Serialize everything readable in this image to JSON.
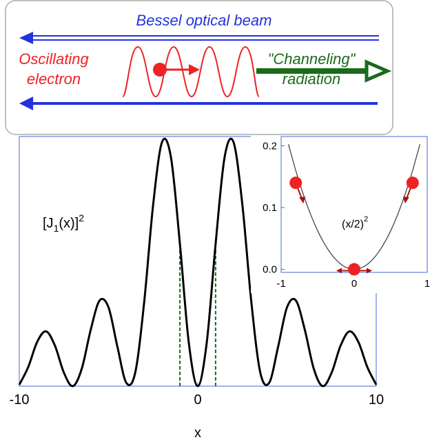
{
  "chart_data": [
    {
      "type": "line",
      "annotation": {
        "base": "[J",
        "sub": "1",
        "mid": "(x)]",
        "sup": "2"
      },
      "x_label": "x",
      "x": [
        -10,
        -9.5,
        -9,
        -8.5,
        -8,
        -7.5,
        -7,
        -6.5,
        -6,
        -5.5,
        -5,
        -4.5,
        -4,
        -3.5,
        -3,
        -2.5,
        -2,
        -1.5,
        -1,
        -0.5,
        0,
        0.5,
        1,
        1.5,
        2,
        2.5,
        3,
        3.5,
        4,
        4.5,
        5,
        5.5,
        6,
        6.5,
        7,
        7.5,
        8,
        8.5,
        9,
        9.5,
        10
      ],
      "series": [
        {
          "color": "#000000",
          "values": [
            0.0019,
            0.026,
            0.0602,
            0.0746,
            0.055,
            0.0183,
            0.0,
            0.0237,
            0.0766,
            0.1166,
            0.1073,
            0.0534,
            0.0044,
            0.0189,
            0.115,
            0.2471,
            0.3326,
            0.3113,
            0.1937,
            0.0587,
            0,
            0.0587,
            0.1937,
            0.3113,
            0.3326,
            0.2471,
            0.115,
            0.0189,
            0.0044,
            0.0534,
            0.1073,
            0.1166,
            0.0766,
            0.0237,
            0.0,
            0.0183,
            0.055,
            0.0746,
            0.0602,
            0.026,
            0.0019
          ]
        }
      ],
      "guides": {
        "color": "#1a6b1a",
        "x": [
          -1,
          1
        ],
        "y": [
          0.1937,
          0.1937
        ]
      },
      "axis_color": "#4466dd",
      "xlim": [
        -10,
        10
      ],
      "xticks": [
        -10,
        0,
        10
      ],
      "ylim": [
        0,
        0.34
      ]
    },
    {
      "type": "line",
      "annotation": {
        "base": "(x/2)",
        "sup": "2"
      },
      "x": [
        -0.9,
        -0.8,
        -0.7,
        -0.6,
        -0.5,
        -0.4,
        -0.3,
        -0.2,
        -0.1,
        0,
        0.1,
        0.2,
        0.3,
        0.4,
        0.5,
        0.6,
        0.7,
        0.8,
        0.9
      ],
      "series": [
        {
          "color": "#444444",
          "values": [
            0.2025,
            0.16,
            0.1225,
            0.09,
            0.0625,
            0.04,
            0.0225,
            0.01,
            0.0025,
            0,
            0.0025,
            0.01,
            0.0225,
            0.04,
            0.0625,
            0.09,
            0.1225,
            0.16,
            0.2025
          ]
        }
      ],
      "points": {
        "color": "#ee2222",
        "x": [
          -0.8,
          0,
          0.8
        ],
        "y": [
          0.14,
          0,
          0.14
        ]
      },
      "axis_color": "#4466dd",
      "xlim": [
        -1,
        1
      ],
      "xticks": [
        -1,
        0,
        1
      ],
      "ylim": [
        -0.005,
        0.215
      ],
      "yticks": [
        {
          "value": 0,
          "label": "0.0"
        },
        0.1,
        0.2
      ]
    }
  ],
  "banner": {
    "beam": "Bessel optical beam",
    "electron": [
      "Oscillating",
      "electron"
    ],
    "radiation": [
      "\"Channeling\"",
      "radiation"
    ]
  }
}
